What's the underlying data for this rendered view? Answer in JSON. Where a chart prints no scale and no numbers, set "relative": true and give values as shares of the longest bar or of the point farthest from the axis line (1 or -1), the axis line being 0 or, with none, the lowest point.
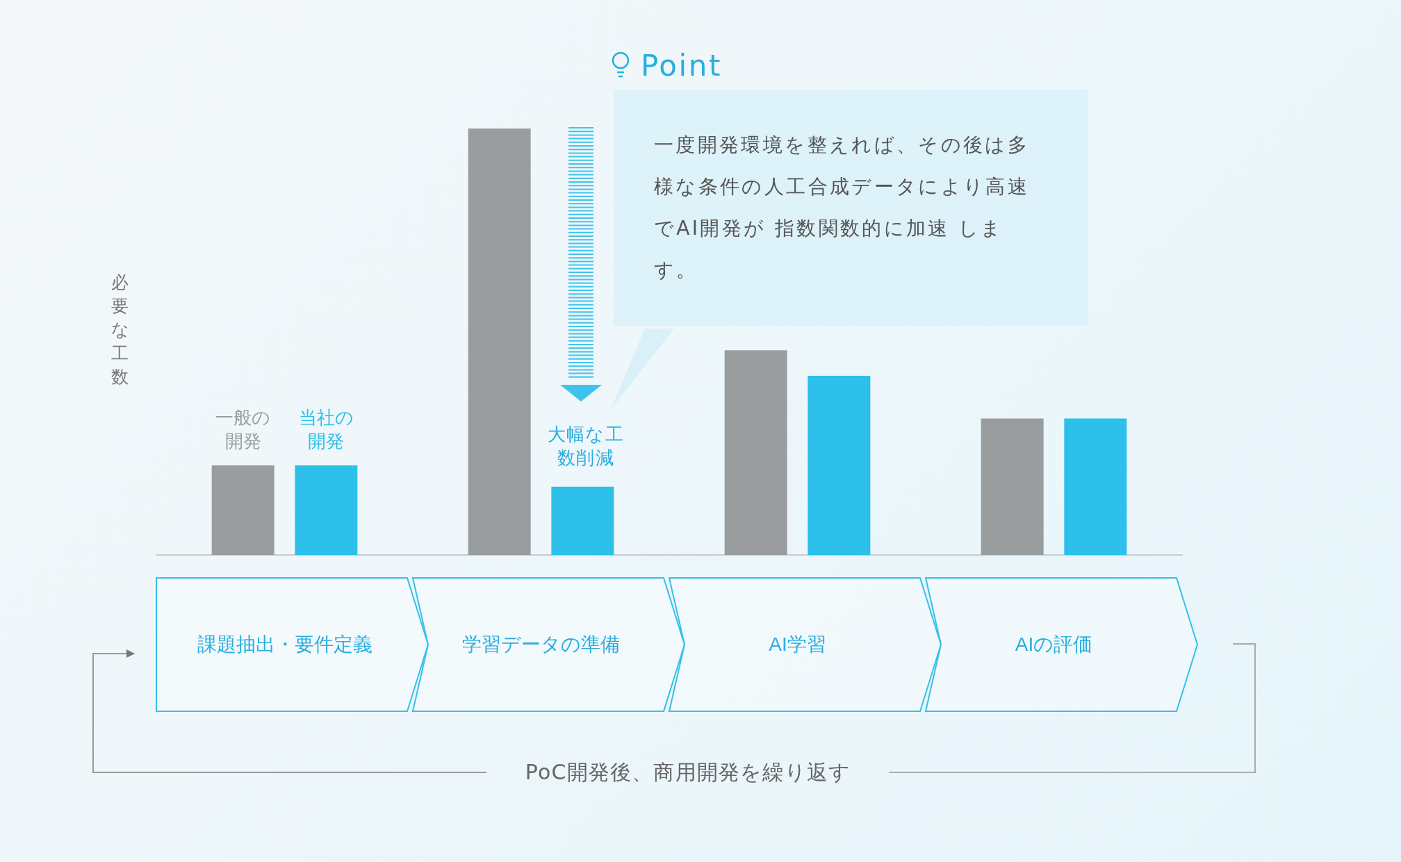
{
  "chart_data": {
    "type": "bar",
    "relative": true,
    "ylabel": "必要な工数",
    "categories": [
      "課題抽出・要件定義",
      "学習データの準備",
      "AI学習",
      "AIの評価"
    ],
    "series": [
      {
        "name": "一般の開発",
        "color": "#9a9d9e",
        "values": [
          0.21,
          1,
          0.48,
          0.32
        ]
      },
      {
        "name": "当社の開発",
        "color": "#2cc0eb",
        "values": [
          0.21,
          0.16,
          0.42,
          0.32
        ]
      }
    ],
    "annotations": [
      "Point",
      "一度開発環境を整えれば、その後は多様な条件の人工合成データにより高速でAI開発が 指数関数的に加速 します。",
      "大幅な工数削減",
      "PoC開発後、商用開発を繰り返す"
    ],
    "grid": false,
    "legend": false
  }
}
